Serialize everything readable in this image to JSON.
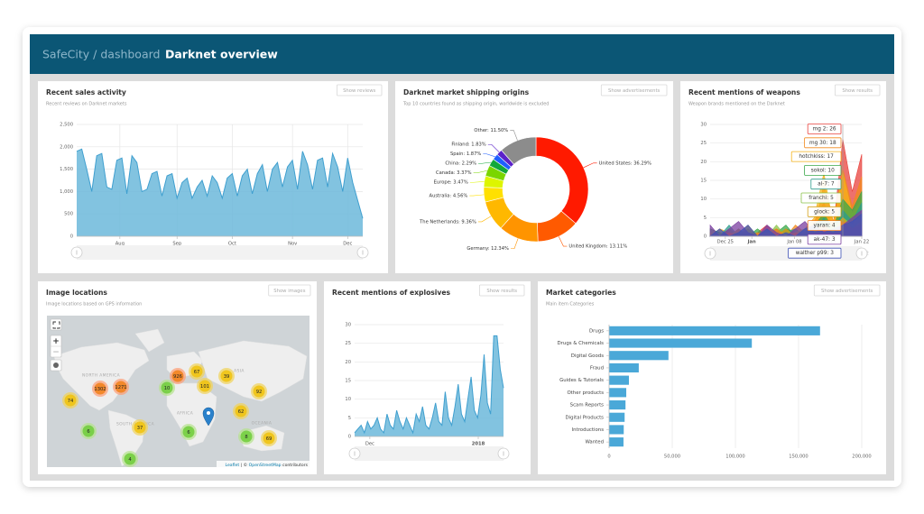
{
  "header": {
    "brand": "SafeCity / dashboard",
    "title": "Darknet overview"
  },
  "sales": {
    "title": "Recent sales activity",
    "subtitle": "Recent reviews on Darknet markets",
    "button": "Show reviews",
    "color": "#6cb8db",
    "ylim": [
      0,
      2500
    ],
    "yticks": [
      0,
      500,
      {
        "value": 1000,
        "label": "1,000"
      },
      {
        "value": 1500,
        "label": "1,500"
      },
      {
        "value": 2000,
        "label": "2,000"
      },
      {
        "value": 2500,
        "label": "2,500"
      }
    ],
    "xlim": [
      0,
      57
    ],
    "xticks": [
      {
        "value": 8.6,
        "label": "Aug"
      },
      {
        "value": 20,
        "label": "Sep"
      },
      {
        "value": 31,
        "label": "Oct"
      },
      {
        "value": 43,
        "label": "Nov"
      },
      {
        "value": 54,
        "label": "Dec"
      }
    ],
    "values": [
      1900,
      1950,
      1500,
      1000,
      1800,
      1850,
      1100,
      1050,
      1700,
      1750,
      950,
      1800,
      1650,
      1000,
      1050,
      1400,
      1450,
      900,
      1350,
      1400,
      850,
      1200,
      1300,
      850,
      1100,
      1250,
      900,
      1350,
      1200,
      850,
      1300,
      1400,
      900,
      1350,
      1500,
      950,
      1400,
      1600,
      1000,
      1500,
      1650,
      1100,
      1550,
      1700,
      1050,
      1900,
      1600,
      1050,
      1700,
      1750,
      1100,
      1850,
      1550,
      1000,
      1750,
      1200,
      800,
      400
    ]
  },
  "shipping": {
    "title": "Darknet market shipping origins",
    "subtitle": "Top 10 countries found as shipping origin, worldwide is excluded",
    "button": "Show advertisements",
    "labels": [
      "United States: 36.29%",
      "United Kingdom: 13.11%",
      "Germany: 12.34%",
      "The Netherlands: 9.36%",
      "Australia: 4.56%",
      "Europe: 3.47%",
      "Canada: 3.37%",
      "China: 2.29%",
      "Spain: 1.87%",
      "Finland: 1.83%",
      "Other: 11.50%"
    ],
    "values": [
      36.29,
      13.11,
      12.34,
      9.36,
      4.56,
      3.47,
      3.37,
      2.29,
      1.87,
      1.83,
      11.5
    ],
    "colors": [
      "#ff1a00",
      "#ff5a00",
      "#ff9400",
      "#ffb800",
      "#ffe000",
      "#ddf500",
      "#7ad600",
      "#12a83a",
      "#1f5fff",
      "#5b21c9",
      "#8c8c8c"
    ]
  },
  "weapons": {
    "title": "Recent mentions of weapons",
    "subtitle": "Weapon brands mentioned on the Darknet",
    "button": "Show results",
    "ylim": [
      0,
      30
    ],
    "yticks": [
      0,
      5,
      10,
      15,
      20,
      25,
      30
    ],
    "xlim": [
      0,
      16
    ],
    "xticks": [
      {
        "value": 1.6,
        "label": "Dec 25"
      },
      {
        "value": 4.4,
        "label": "Jan"
      },
      {
        "value": 8.9,
        "label": "Jan 08"
      },
      {
        "value": 12.5,
        "label": "Jan 15"
      },
      {
        "value": 16,
        "label": "Jan 22"
      }
    ],
    "series": [
      {
        "color": "#e8413c",
        "values": [
          0,
          1,
          0,
          2,
          0,
          1,
          3,
          0,
          2,
          1,
          0,
          4,
          9,
          2,
          26,
          12,
          22
        ]
      },
      {
        "color": "#f28a1e",
        "values": [
          1,
          0,
          2,
          0,
          1,
          0,
          2,
          1,
          0,
          3,
          1,
          2,
          14,
          4,
          18,
          8,
          16
        ]
      },
      {
        "color": "#f5b21a",
        "values": [
          0,
          2,
          1,
          0,
          3,
          0,
          1,
          2,
          1,
          0,
          2,
          5,
          17,
          3,
          17,
          6,
          10
        ]
      },
      {
        "color": "#3aa84a",
        "values": [
          2,
          1,
          0,
          1,
          0,
          2,
          0,
          1,
          3,
          0,
          1,
          3,
          6,
          2,
          10,
          7,
          12
        ]
      },
      {
        "color": "#2e9c8c",
        "values": [
          0,
          0,
          3,
          0,
          1,
          0,
          2,
          0,
          1,
          2,
          0,
          1,
          5,
          1,
          7,
          4,
          9
        ]
      },
      {
        "color": "#8bc34a",
        "values": [
          1,
          0,
          0,
          2,
          0,
          1,
          0,
          3,
          0,
          1,
          2,
          0,
          4,
          2,
          5,
          3,
          6
        ]
      },
      {
        "color": "#d4a017",
        "values": [
          0,
          1,
          0,
          0,
          2,
          0,
          1,
          0,
          2,
          0,
          1,
          2,
          3,
          1,
          5,
          2,
          4
        ]
      },
      {
        "color": "#ef7d22",
        "values": [
          0,
          0,
          1,
          0,
          0,
          1,
          0,
          2,
          0,
          1,
          0,
          1,
          3,
          0,
          4,
          2,
          3
        ]
      },
      {
        "color": "#7b3fa0",
        "values": [
          3,
          0,
          2,
          4,
          1,
          0,
          3,
          1,
          0,
          2,
          4,
          1,
          2,
          1,
          3,
          5,
          7
        ]
      },
      {
        "color": "#3f51b5",
        "values": [
          0,
          2,
          0,
          1,
          3,
          0,
          2,
          0,
          1,
          0,
          2,
          3,
          1,
          2,
          3,
          4,
          6
        ]
      }
    ],
    "tooltip": [
      "mg 2: 26",
      "mg 30: 18",
      "hotchkiss: 17",
      "sokol: 10",
      "al-7: 7",
      "franchi: 5",
      "glock: 5",
      "yaran: 4",
      "ak-47: 3",
      "walther p99: 3"
    ]
  },
  "map": {
    "title": "Image locations",
    "subtitle": "Image locations based on GPS information",
    "button": "Show images",
    "controls": [
      "+",
      "−"
    ],
    "regions": [
      "NORTH AMERICA",
      "ASIA",
      "AFRICA",
      "SOUTH AMERICA",
      "OCEANIA"
    ],
    "clusters": [
      74,
      1302,
      1271,
      926,
      67,
      10,
      101,
      39,
      92,
      62,
      6,
      37,
      6,
      8,
      69,
      4
    ],
    "attribution": [
      "Leaflet",
      " | © ",
      "OpenStreetMap",
      " contributors"
    ]
  },
  "explosives": {
    "title": "Recent mentions of explosives",
    "button": "Show results",
    "color": "#6cb8db",
    "ylim": [
      0,
      30
    ],
    "yticks": [
      0,
      5,
      10,
      15,
      20,
      25,
      30
    ],
    "xlim": [
      0,
      46
    ],
    "xticks": [
      {
        "value": 4.7,
        "label": "Dec"
      },
      {
        "value": 38.2,
        "label": "2018"
      }
    ],
    "values": [
      1,
      2,
      3,
      1,
      4,
      2,
      3,
      5,
      2,
      1,
      6,
      3,
      2,
      7,
      4,
      2,
      5,
      3,
      1,
      6,
      4,
      8,
      3,
      2,
      5,
      9,
      4,
      3,
      12,
      5,
      3,
      8,
      14,
      6,
      4,
      10,
      16,
      7,
      5,
      11,
      22,
      9,
      6,
      27,
      27,
      18,
      13
    ]
  },
  "categories": {
    "title": "Market categories",
    "subtitle": "Main item Categories",
    "button": "Show advertisements",
    "color": "#4aa8d8",
    "categories": [
      "Drugs",
      "Drugs & Chemicals",
      "Digital Goods",
      "Fraud",
      "Guides & Tutorials",
      "Other products",
      "Scam Reports",
      "Digital Products",
      "Introductions",
      "Wanted"
    ],
    "values": [
      167000,
      113000,
      47000,
      23500,
      15700,
      13600,
      13000,
      12300,
      11600,
      11400
    ],
    "xlim": [
      0,
      200000
    ],
    "xticks": [
      0,
      {
        "value": 50000,
        "label": "50,000"
      },
      {
        "value": 100000,
        "label": "100,000"
      },
      {
        "value": 150000,
        "label": "150,000"
      },
      {
        "value": 200000,
        "label": "200,000"
      }
    ]
  }
}
